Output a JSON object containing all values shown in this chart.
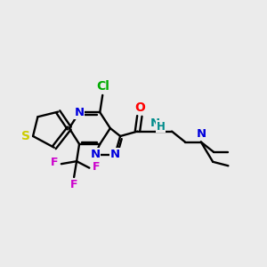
{
  "bg": "#ebebeb",
  "figsize": [
    3.0,
    3.0
  ],
  "dpi": 100,
  "atom_colors": {
    "S": "#cccc00",
    "Cl": "#00aa00",
    "N": "#0000dd",
    "NH": "#008b8b",
    "O": "#ff0000",
    "F": "#cc00cc",
    "C": "#000000",
    "N_et": "#0000dd"
  }
}
